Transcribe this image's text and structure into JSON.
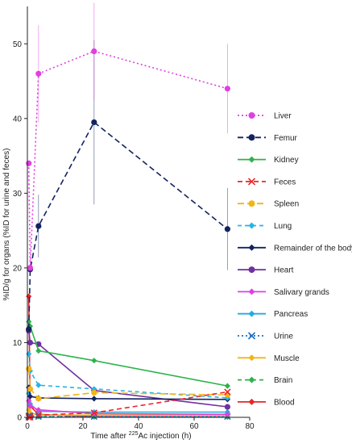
{
  "chart_data": {
    "type": "line",
    "xlabel_prefix": "Time after ",
    "xlabel_sup": "225",
    "xlabel_suffix": "Ac injection (h)",
    "ylabel": "%ID/g for organs (%ID for urine and feces)",
    "xlim": [
      0,
      80
    ],
    "ylim": [
      0,
      55
    ],
    "xticks": [
      0,
      20,
      40,
      60,
      80
    ],
    "yticks": [
      0,
      10,
      20,
      30,
      40,
      50
    ],
    "grid": false,
    "legend_position": "right",
    "series": [
      {
        "name": "Liver",
        "color": "#e040e0",
        "dash": "2,3",
        "marker": "circle",
        "x": [
          0.5,
          1,
          4,
          24,
          72
        ],
        "y": [
          34,
          20,
          46,
          49,
          44
        ],
        "err": [
          0,
          0,
          6.5,
          6.5,
          6
        ]
      },
      {
        "name": "Femur",
        "color": "#13235f",
        "dash": "7,4",
        "marker": "circle",
        "x": [
          0.5,
          1,
          4,
          24,
          72
        ],
        "y": [
          11.8,
          19.8,
          25.6,
          39.5,
          25.2
        ],
        "err": [
          0,
          0,
          4.2,
          11,
          5.5
        ]
      },
      {
        "name": "Kidney",
        "color": "#2db34a",
        "dash": "",
        "marker": "diamond",
        "x": [
          0.5,
          1,
          4,
          24,
          72
        ],
        "y": [
          12.8,
          12.2,
          8.9,
          7.6,
          4.2
        ],
        "err": [
          0,
          0,
          0,
          0,
          0
        ]
      },
      {
        "name": "Feces",
        "color": "#e8262b",
        "dash": "6,4",
        "marker": "x",
        "x": [
          0.5,
          1,
          4,
          24,
          72
        ],
        "y": [
          0,
          0,
          0.3,
          0.6,
          3.4
        ],
        "err": [
          0,
          0,
          0,
          0,
          0
        ]
      },
      {
        "name": "Spleen",
        "color": "#f2b417",
        "dash": "8,4",
        "marker": "circle",
        "x": [
          0.5,
          1,
          4,
          24,
          72
        ],
        "y": [
          6.5,
          3.8,
          2.5,
          3.3,
          3.0
        ],
        "err": [
          0,
          0,
          0,
          0,
          0
        ]
      },
      {
        "name": "Lung",
        "color": "#27b4e6",
        "dash": "5,4",
        "marker": "diamond",
        "x": [
          0.5,
          1,
          4,
          24,
          72
        ],
        "y": [
          8.5,
          6.2,
          4.3,
          3.8,
          2.6
        ],
        "err": [
          0,
          0,
          0,
          0,
          0
        ]
      },
      {
        "name": "Remainder of the body",
        "color": "#13235f",
        "dash": "",
        "marker": "diamond",
        "x": [
          0.5,
          1,
          4,
          24,
          72
        ],
        "y": [
          4.0,
          2.8,
          2.6,
          2.5,
          2.4
        ],
        "err": [
          0,
          0,
          0,
          0,
          0
        ]
      },
      {
        "name": "Heart",
        "color": "#7030a0",
        "dash": "",
        "marker": "circle",
        "x": [
          0.5,
          1,
          4,
          24,
          72
        ],
        "y": [
          11.6,
          10.0,
          9.8,
          3.6,
          1.4
        ],
        "err": [
          0,
          0,
          0,
          0,
          0
        ]
      },
      {
        "name": "Salivary grands",
        "color": "#e040e0",
        "dash": "",
        "marker": "diamond",
        "x": [
          0.5,
          1,
          4,
          24,
          72
        ],
        "y": [
          2.2,
          1.5,
          1.0,
          0.5,
          0.4
        ],
        "err": [
          0,
          0,
          0,
          0,
          0
        ]
      },
      {
        "name": "Pancreas",
        "color": "#27a9e1",
        "dash": "",
        "marker": "diamond",
        "x": [
          0.5,
          1,
          4,
          24,
          72
        ],
        "y": [
          3.2,
          1.8,
          0.8,
          0.7,
          0.7
        ],
        "err": [
          0,
          0,
          0,
          0,
          0
        ]
      },
      {
        "name": "Urine",
        "color": "#1f6fc0",
        "dash": "2,3",
        "marker": "x",
        "x": [
          0.5,
          1,
          4,
          24,
          72
        ],
        "y": [
          0.2,
          0.2,
          0.1,
          0.1,
          0.1
        ],
        "err": [
          0,
          0,
          0,
          0,
          0
        ]
      },
      {
        "name": "Muscle",
        "color": "#f2b417",
        "dash": "",
        "marker": "diamond",
        "x": [
          0.5,
          1,
          4,
          24,
          72
        ],
        "y": [
          1.0,
          0.6,
          0.3,
          0.3,
          0.3
        ],
        "err": [
          0,
          0,
          0,
          0,
          0
        ]
      },
      {
        "name": "Brain",
        "color": "#2db34a",
        "dash": "5,4",
        "marker": "diamond",
        "x": [
          0.5,
          1,
          4,
          24,
          72
        ],
        "y": [
          0.3,
          0.2,
          0.1,
          0.05,
          0.05
        ],
        "err": [
          0,
          0,
          0,
          0,
          0
        ]
      },
      {
        "name": "Blood",
        "color": "#e8262b",
        "dash": "",
        "marker": "diamond",
        "x": [
          0.5,
          1,
          4,
          24,
          72
        ],
        "y": [
          16.2,
          1.5,
          0.4,
          0.1,
          0.05
        ],
        "err": [
          0,
          0,
          0,
          0,
          0
        ]
      }
    ]
  }
}
